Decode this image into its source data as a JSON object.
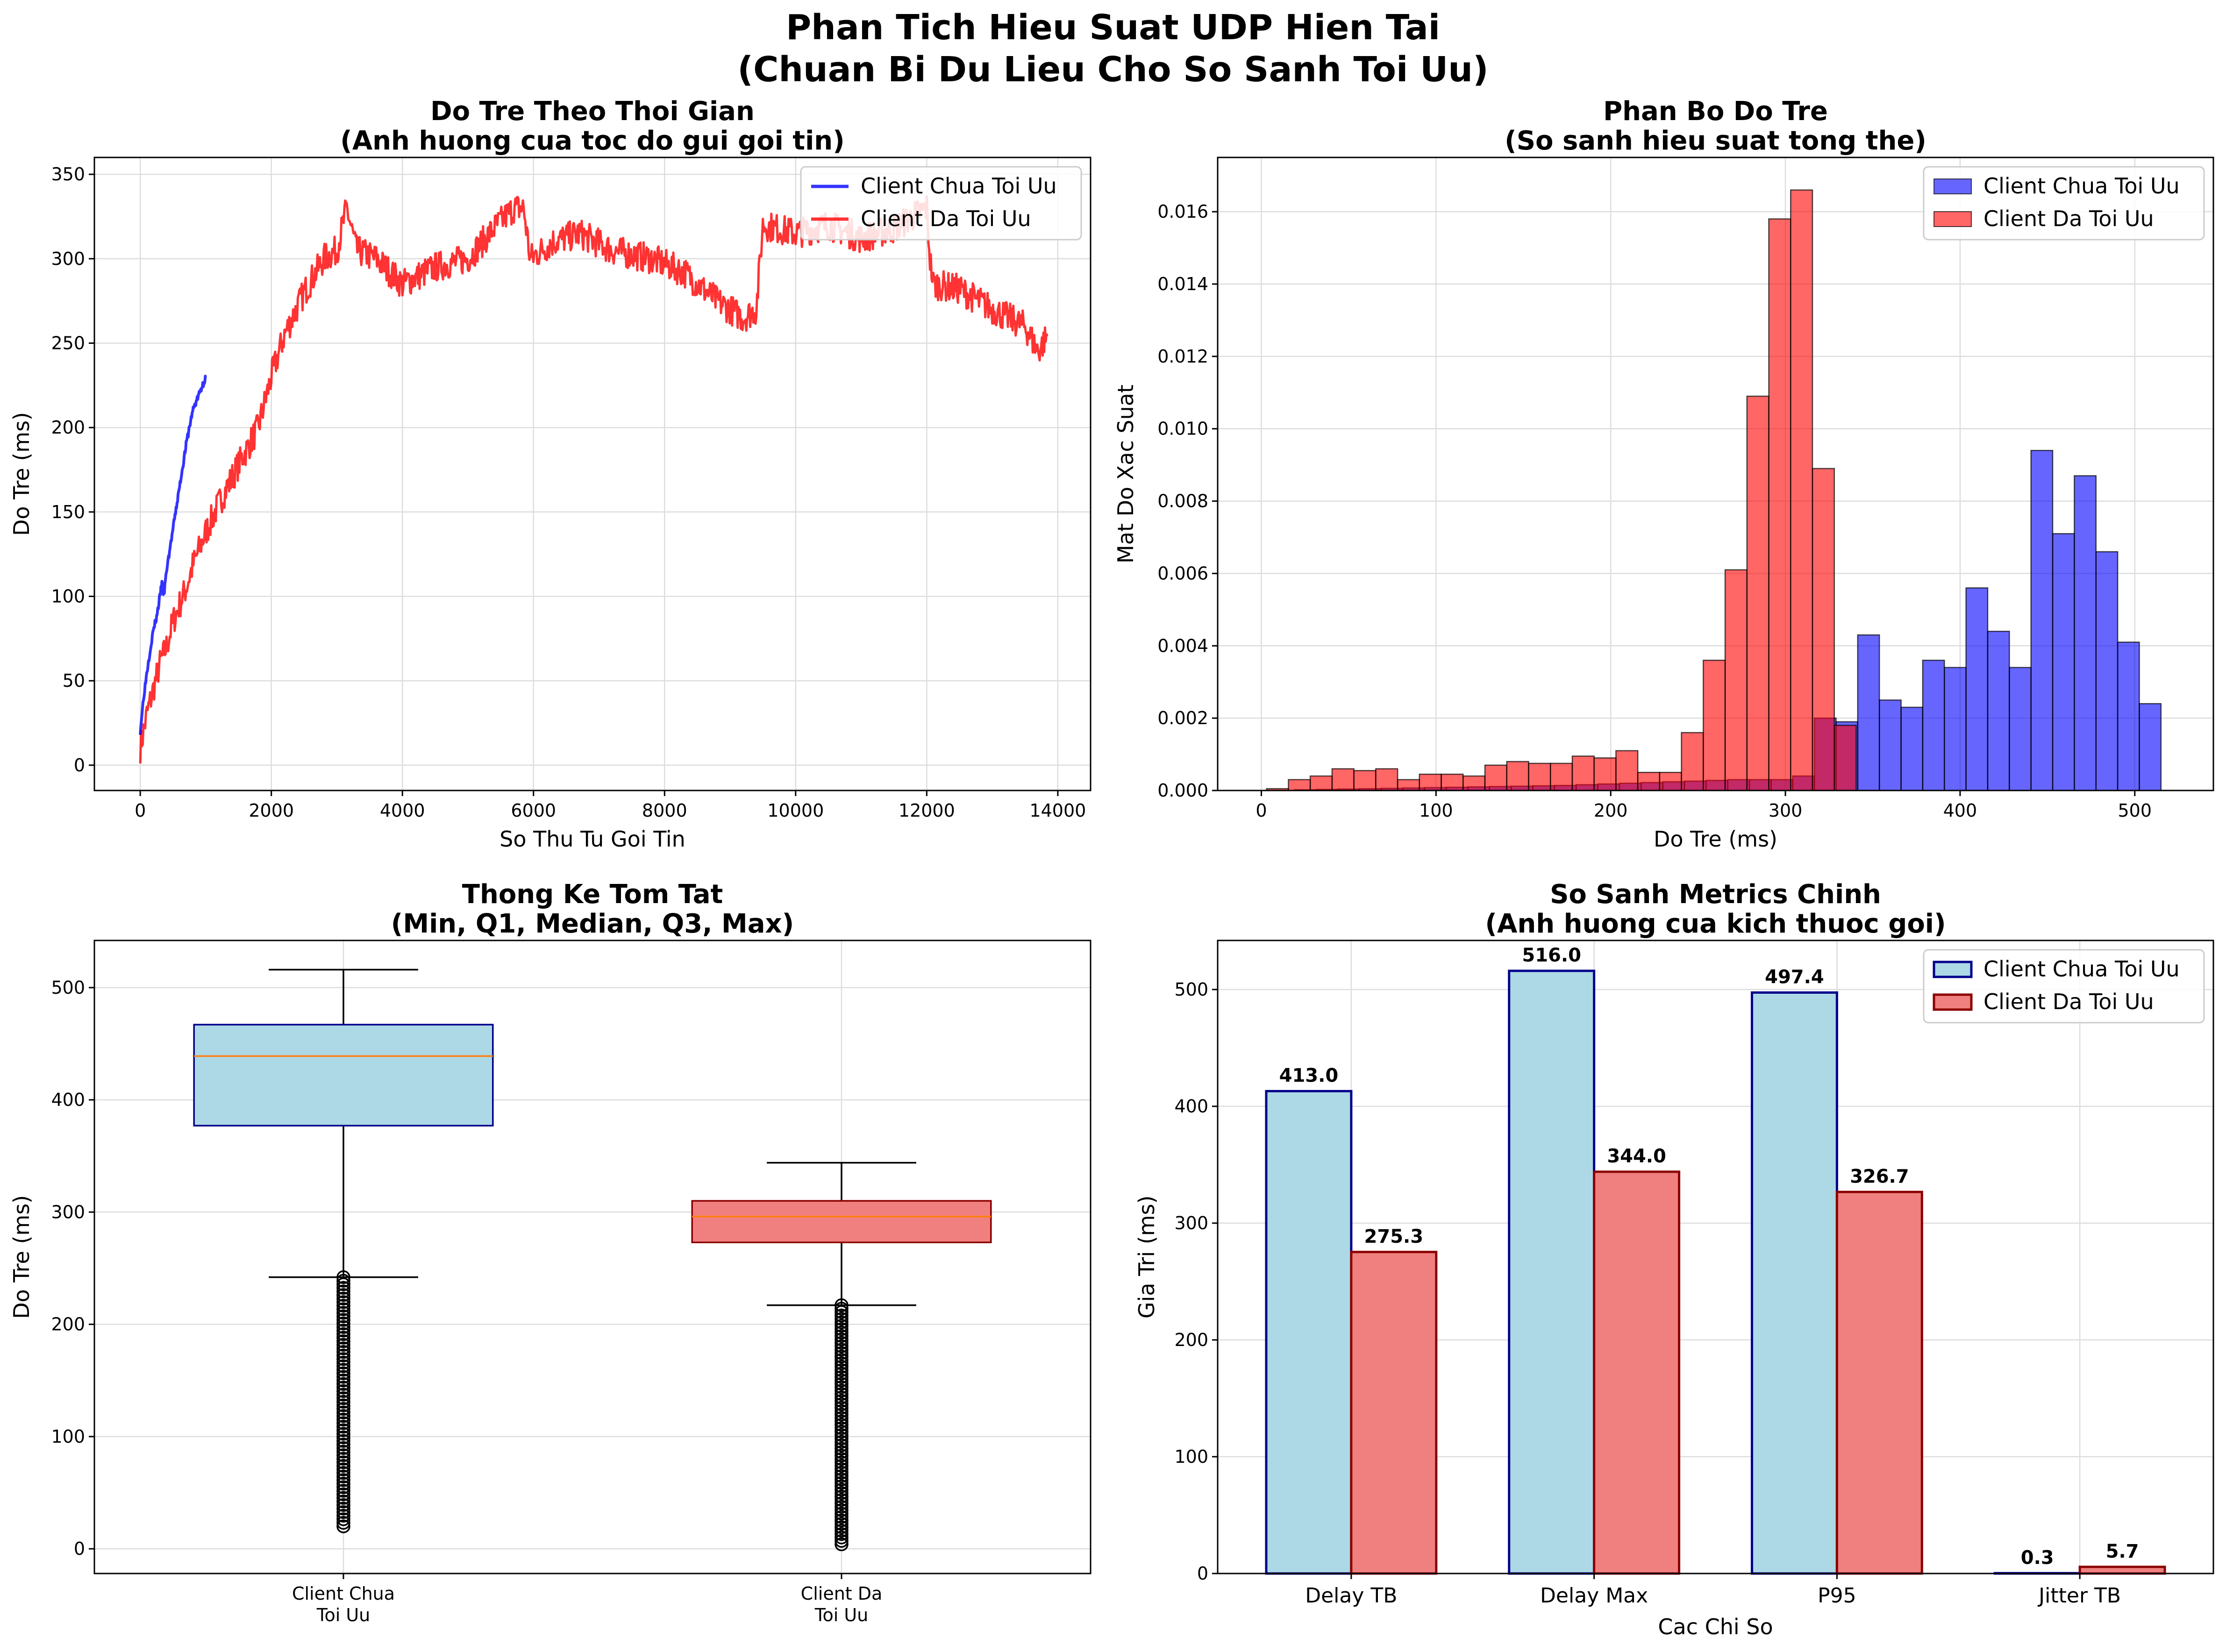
{
  "figure": {
    "title_line1": "Phan Tich Hieu Suat UDP Hien Tai",
    "title_line2": "(Chuan Bi Du Lieu Cho So Sanh Toi Uu)"
  },
  "colors": {
    "blue_line": "#0000ff",
    "red_line": "#ff0000",
    "hist_blue": "#0000ff",
    "hist_red": "#ff0000",
    "box_unopt": "#add8e6",
    "box_opt": "#f08080",
    "bar_edge_unopt": "#00008b",
    "bar_edge_opt": "#8b0000",
    "median": "#ff7f0e",
    "grid": "#dddddd"
  },
  "chart_data": [
    {
      "id": "delay-over-time",
      "type": "line",
      "title_line1": "Do Tre Theo Thoi Gian",
      "title_line2": "(Anh huong cua toc do gui goi tin)",
      "xlabel": "So Thu Tu Goi Tin",
      "ylabel": "Do Tre (ms)",
      "xlim": [
        -700,
        14500
      ],
      "ylim": [
        -15,
        360
      ],
      "xticks": [
        0,
        2000,
        4000,
        6000,
        8000,
        10000,
        12000,
        14000
      ],
      "yticks": [
        0,
        50,
        100,
        150,
        200,
        250,
        300,
        350
      ],
      "grid": true,
      "legend": "top-right",
      "series": [
        {
          "name": "Client Chua Toi Uu",
          "color": "#0000ff",
          "x": [
            0,
            50,
            100,
            150,
            200,
            250,
            300,
            330,
            360,
            400,
            500,
            600,
            700,
            800,
            900,
            1000
          ],
          "y": [
            20,
            40,
            55,
            68,
            80,
            88,
            100,
            108,
            100,
            115,
            140,
            165,
            190,
            210,
            220,
            230
          ]
        },
        {
          "name": "Client Da Toi Uu",
          "color": "#ff0000",
          "x": [
            0,
            100,
            200,
            300,
            400,
            500,
            600,
            700,
            800,
            1000,
            1200,
            1500,
            1800,
            2000,
            2200,
            2500,
            2800,
            3000,
            3150,
            3300,
            3600,
            4000,
            4500,
            5000,
            5400,
            5700,
            5850,
            5950,
            6300,
            6700,
            7200,
            7800,
            8300,
            8800,
            9200,
            9400,
            9500,
            9700,
            10000,
            10500,
            11000,
            11500,
            12000,
            12050,
            12100,
            12500,
            13000,
            13500,
            13700,
            13850
          ],
          "y": [
            10,
            30,
            45,
            60,
            70,
            85,
            95,
            105,
            118,
            138,
            155,
            178,
            200,
            230,
            255,
            280,
            300,
            305,
            330,
            305,
            300,
            285,
            295,
            300,
            318,
            330,
            330,
            300,
            310,
            315,
            305,
            300,
            292,
            275,
            265,
            270,
            320,
            318,
            315,
            320,
            312,
            318,
            330,
            300,
            285,
            282,
            270,
            260,
            245,
            255
          ]
        }
      ]
    },
    {
      "id": "delay-distribution",
      "type": "bar",
      "title_line1": "Phan Bo Do Tre",
      "title_line2": "(So sanh hieu suat tong the)",
      "xlabel": "Do Tre (ms)",
      "ylabel": "Mat Do Xac Suat",
      "xlim": [
        -25,
        545
      ],
      "ylim": [
        0,
        0.0175
      ],
      "xticks": [
        0,
        100,
        200,
        300,
        400,
        500
      ],
      "yticks": [
        0.0,
        0.002,
        0.004,
        0.006,
        0.008,
        0.01,
        0.012,
        0.014,
        0.016
      ],
      "grid": true,
      "legend": "top-right",
      "series": [
        {
          "name": "Client Chua Toi Uu",
          "color": "#0000ff",
          "bin_start": 19,
          "bin_width": 12.4,
          "values": [
            2e-05,
            3e-05,
            4e-05,
            5e-05,
            6e-05,
            7e-05,
            8e-05,
            9e-05,
            0.0001,
            0.00011,
            0.00012,
            0.00013,
            0.00014,
            0.00016,
            0.00018,
            0.0002,
            0.00022,
            0.00024,
            0.00026,
            0.00028,
            0.0003,
            0.0003,
            0.0003,
            0.0004,
            0.002,
            0.0019,
            0.0043,
            0.0025,
            0.0023,
            0.0036,
            0.0034,
            0.0056,
            0.0044,
            0.0034,
            0.0094,
            0.0071,
            0.0087,
            0.0066,
            0.0041,
            0.0024
          ]
        },
        {
          "name": "Client Da Toi Uu",
          "color": "#ff0000",
          "bin_start": 3,
          "bin_width": 12.5,
          "values": [
            5e-05,
            0.0003,
            0.0004,
            0.0006,
            0.00055,
            0.0006,
            0.0003,
            0.00045,
            0.00045,
            0.0004,
            0.0007,
            0.0008,
            0.00075,
            0.00075,
            0.00095,
            0.0009,
            0.0011,
            0.0005,
            0.0005,
            0.0016,
            0.0036,
            0.0061,
            0.0109,
            0.0158,
            0.0166,
            0.0089,
            0.0018
          ]
        }
      ]
    },
    {
      "id": "summary-stats",
      "type": "box",
      "title_line1": "Thong Ke Tom Tat",
      "title_line2": "(Min, Q1, Median, Q3, Max)",
      "xlabel": "",
      "ylabel": "Do Tre (ms)",
      "ylim": [
        -22,
        542
      ],
      "yticks": [
        0,
        100,
        200,
        300,
        400,
        500
      ],
      "grid": true,
      "categories": [
        "Client Chua\nToi Uu",
        "Client Da\nToi Uu"
      ],
      "boxes": [
        {
          "q1": 377,
          "median": 439,
          "q3": 467,
          "whisker_low": 242,
          "whisker_high": 516,
          "outlier_min": 20,
          "outlier_max": 242,
          "color": "#add8e6",
          "edge": "#00008b"
        },
        {
          "q1": 273,
          "median": 296,
          "q3": 310,
          "whisker_low": 217,
          "whisker_high": 344,
          "outlier_min": 4,
          "outlier_max": 217,
          "color": "#f08080",
          "edge": "#8b0000"
        }
      ]
    },
    {
      "id": "key-metrics",
      "type": "bar",
      "title_line1": "So Sanh Metrics Chinh",
      "title_line2": "(Anh huong cua kich thuoc goi)",
      "xlabel": "Cac Chi So",
      "ylabel": "Gia Tri (ms)",
      "ylim": [
        0,
        542
      ],
      "yticks": [
        0,
        100,
        200,
        300,
        400,
        500
      ],
      "grid": true,
      "legend": "top-right",
      "categories": [
        "Delay TB",
        "Delay Max",
        "P95",
        "Jitter TB"
      ],
      "series": [
        {
          "name": "Client Chua Toi Uu",
          "color": "#add8e6",
          "edge": "#00008b",
          "values": [
            413.0,
            516.0,
            497.4,
            0.3
          ],
          "labels": [
            "413.0",
            "516.0",
            "497.4",
            "0.3"
          ]
        },
        {
          "name": "Client Da Toi Uu",
          "color": "#f08080",
          "edge": "#8b0000",
          "values": [
            275.3,
            344.0,
            326.7,
            5.7
          ],
          "labels": [
            "275.3",
            "344.0",
            "326.7",
            "5.7"
          ]
        }
      ]
    }
  ]
}
